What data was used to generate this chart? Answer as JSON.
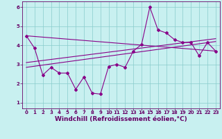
{
  "xlabel": "Windchill (Refroidissement éolien,°C)",
  "bg_color": "#c8f0f0",
  "line_color": "#880088",
  "xlim": [
    -0.5,
    23.5
  ],
  "ylim": [
    0.7,
    6.3
  ],
  "xticks": [
    0,
    1,
    2,
    3,
    4,
    5,
    6,
    7,
    8,
    9,
    10,
    11,
    12,
    13,
    14,
    15,
    16,
    17,
    18,
    19,
    20,
    21,
    22,
    23
  ],
  "yticks": [
    1,
    2,
    3,
    4,
    5,
    6
  ],
  "data_x": [
    0,
    1,
    2,
    3,
    4,
    5,
    6,
    7,
    8,
    9,
    10,
    11,
    12,
    13,
    14,
    15,
    16,
    17,
    18,
    19,
    20,
    21,
    22,
    23
  ],
  "data_y": [
    4.5,
    3.85,
    2.45,
    2.85,
    2.55,
    2.55,
    1.7,
    2.35,
    1.5,
    1.45,
    2.9,
    3.0,
    2.85,
    3.7,
    4.05,
    6.0,
    4.8,
    4.65,
    4.3,
    4.15,
    4.15,
    3.45,
    4.15,
    3.7
  ],
  "trend1_x": [
    0,
    23
  ],
  "trend1_y": [
    4.5,
    3.7
  ],
  "trend2_x": [
    0,
    23
  ],
  "trend2_y": [
    2.85,
    4.2
  ],
  "trend3_x": [
    0,
    23
  ],
  "trend3_y": [
    3.1,
    4.35
  ],
  "grid_color": "#88cccc",
  "font_color": "#660066",
  "tick_fontsize": 5.0,
  "label_fontsize": 6.5
}
